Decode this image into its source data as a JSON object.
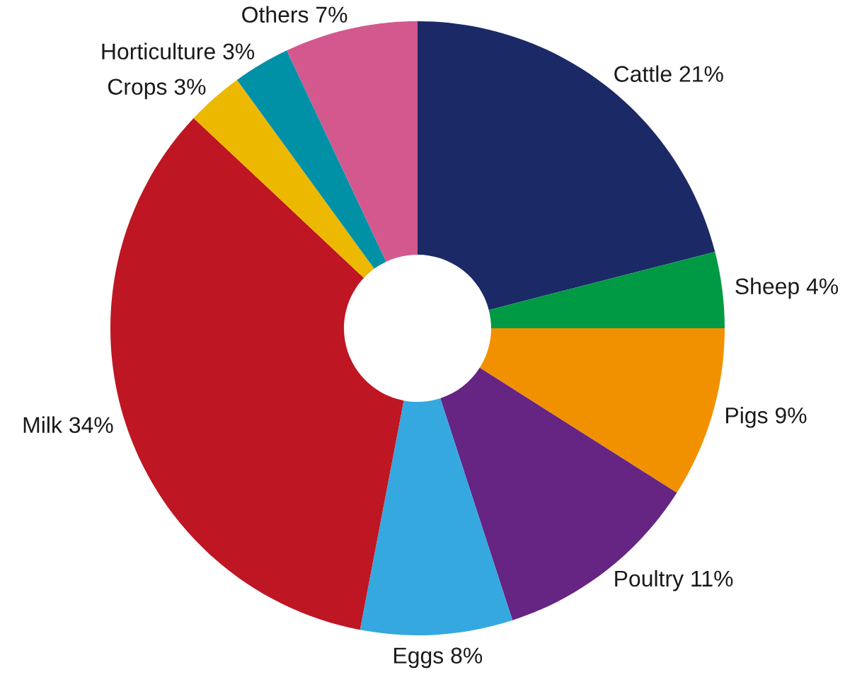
{
  "chart_data": {
    "type": "donut",
    "categories": [
      "Cattle",
      "Sheep",
      "Pigs",
      "Poultry",
      "Eggs",
      "Milk",
      "Crops",
      "Horticulture",
      "Others"
    ],
    "values": [
      21,
      4,
      9,
      11,
      8,
      34,
      3,
      3,
      7
    ],
    "colors": [
      "#1b2a66",
      "#009a44",
      "#f29100",
      "#662483",
      "#35a8e0",
      "#be1622",
      "#edb800",
      "#0091a6",
      "#d3588e"
    ],
    "value_labels": [
      "21%",
      "4%",
      "9%",
      "11%",
      "8%",
      "34%",
      "3%",
      "3%",
      "7%"
    ]
  }
}
